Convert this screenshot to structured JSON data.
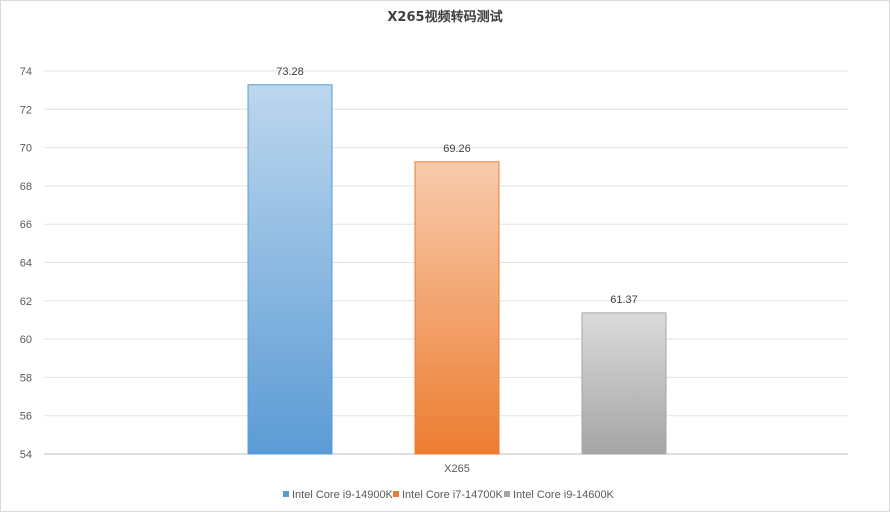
{
  "chart_data": {
    "type": "bar",
    "title": "X265视频转码测试",
    "categories": [
      "X265"
    ],
    "series": [
      {
        "name": "Intel Core i9-14900K",
        "values": [
          73.28
        ],
        "label": "73.28",
        "color_top": "#bdd7ee",
        "color_bottom": "#5b9bd5",
        "stroke": "#5b9bd5"
      },
      {
        "name": "Intel Core i7-14700K",
        "values": [
          69.26
        ],
        "label": "69.26",
        "color_top": "#f8cbad",
        "color_bottom": "#ed7d31",
        "stroke": "#ed7d31"
      },
      {
        "name": "Intel Core i9-14600K",
        "values": [
          61.37
        ],
        "label": "61.37",
        "color_top": "#dbdbdb",
        "color_bottom": "#a5a5a5",
        "stroke": "#a5a5a5"
      }
    ],
    "ylim": [
      54,
      74
    ],
    "yticks": [
      "54",
      "56",
      "58",
      "60",
      "62",
      "64",
      "66",
      "68",
      "70",
      "72",
      "74"
    ],
    "grid": true,
    "legend": "bottom"
  }
}
